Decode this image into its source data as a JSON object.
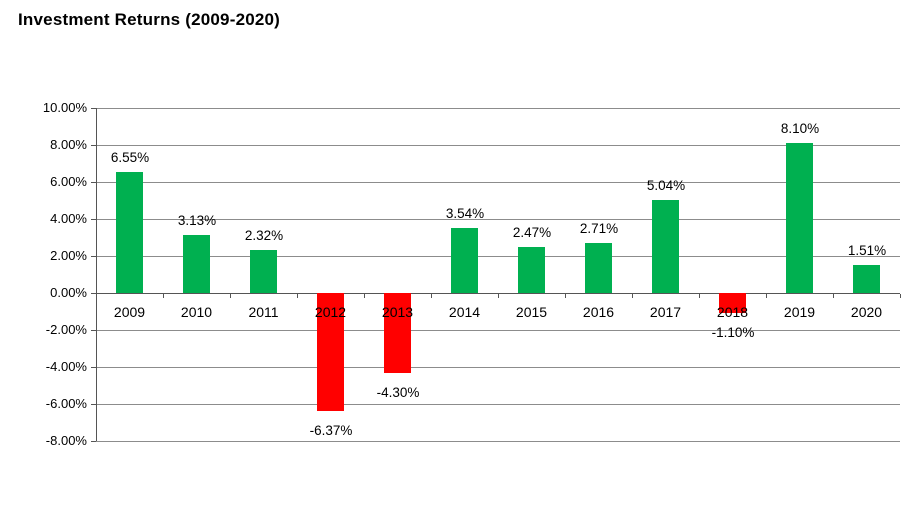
{
  "title": "Investment Returns (2009-2020)",
  "chart_data": {
    "type": "bar",
    "title": "Investment Returns (2009-2020)",
    "categories": [
      "2009",
      "2010",
      "2011",
      "2012",
      "2013",
      "2014",
      "2015",
      "2016",
      "2017",
      "2018",
      "2019",
      "2020"
    ],
    "values": [
      6.55,
      3.13,
      2.32,
      -6.37,
      -4.3,
      3.54,
      2.47,
      2.71,
      5.04,
      -1.1,
      8.1,
      1.51
    ],
    "data_labels": [
      "6.55%",
      "3.13%",
      "2.32%",
      "-6.37%",
      "-4.30%",
      "3.54%",
      "2.47%",
      "2.71%",
      "5.04%",
      "-1.10%",
      "8.10%",
      "1.51%"
    ],
    "xlabel": "",
    "ylabel": "",
    "ylim": [
      -8,
      10
    ],
    "ytick_step": 2,
    "ytick_labels": [
      "10.00%",
      "8.00%",
      "6.00%",
      "4.00%",
      "2.00%",
      "0.00%",
      "-2.00%",
      "-4.00%",
      "-6.00%",
      "-8.00%"
    ],
    "grid": true,
    "legend": false,
    "colors": {
      "positive_bar": "#00B050",
      "negative_bar": "#FF0000",
      "gridline": "#8C8C8C",
      "axis_line": "#555555",
      "text": "#000000"
    }
  }
}
